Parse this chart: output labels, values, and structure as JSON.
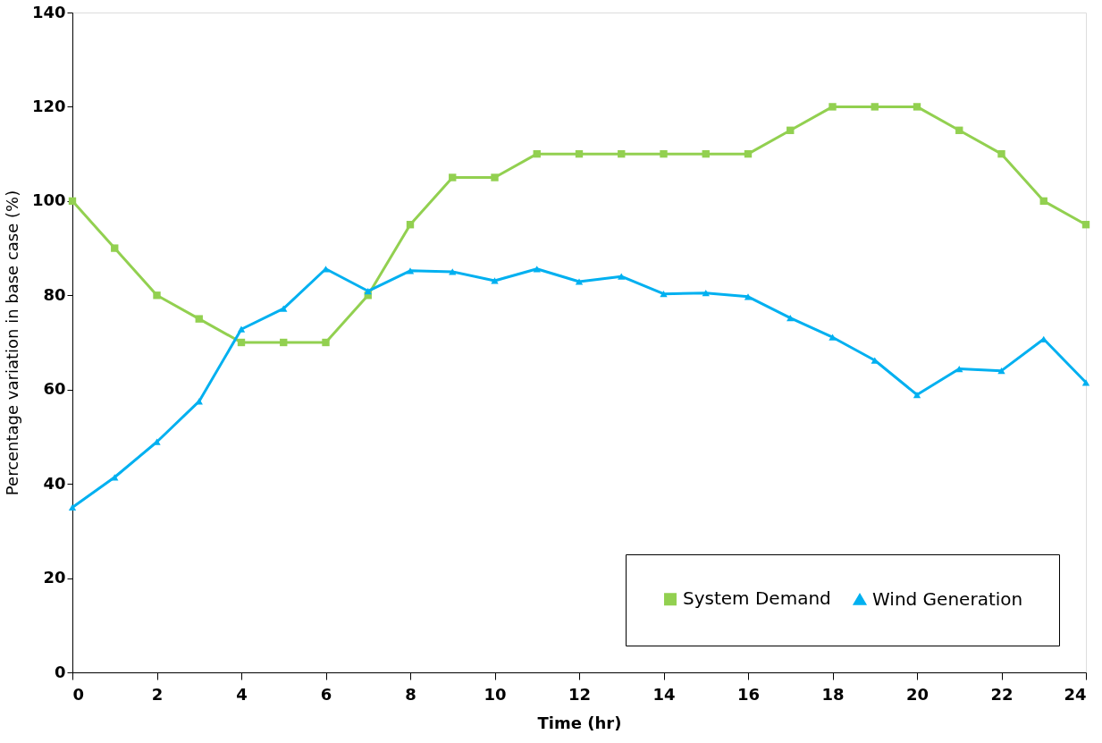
{
  "chart_data": {
    "type": "line",
    "xlabel": "Time (hr)",
    "ylabel": "Percentage variation in base case (%)",
    "x": [
      0,
      1,
      2,
      3,
      4,
      5,
      6,
      7,
      8,
      9,
      10,
      11,
      12,
      13,
      14,
      15,
      16,
      17,
      18,
      19,
      20,
      21,
      22,
      23,
      24
    ],
    "xlim": [
      0,
      24
    ],
    "xticks": [
      0,
      2,
      4,
      6,
      8,
      10,
      12,
      14,
      16,
      18,
      20,
      22,
      24
    ],
    "ylim": [
      0,
      140
    ],
    "yticks": [
      0,
      20,
      40,
      60,
      80,
      100,
      120,
      140
    ],
    "grid": false,
    "legend": "bottom right",
    "series": [
      {
        "name": "System Demand",
        "color": "#92d050",
        "marker": "square",
        "values": [
          100,
          90,
          80,
          75,
          70,
          70,
          70,
          80,
          95,
          105,
          105,
          110,
          110,
          110,
          110,
          110,
          110,
          115,
          120,
          120,
          120,
          115,
          110,
          100,
          95
        ]
      },
      {
        "name": "Wind Generation",
        "color": "#00b0f0",
        "marker": "triangle",
        "values": [
          35,
          41.4,
          48.9,
          57.5,
          72.8,
          77.2,
          85.6,
          80.9,
          85.2,
          85.0,
          83.1,
          85.6,
          82.9,
          84.0,
          80.3,
          80.5,
          79.7,
          75.2,
          71.1,
          66.2,
          58.9,
          64.4,
          64.0,
          70.7,
          61.5
        ]
      }
    ]
  }
}
